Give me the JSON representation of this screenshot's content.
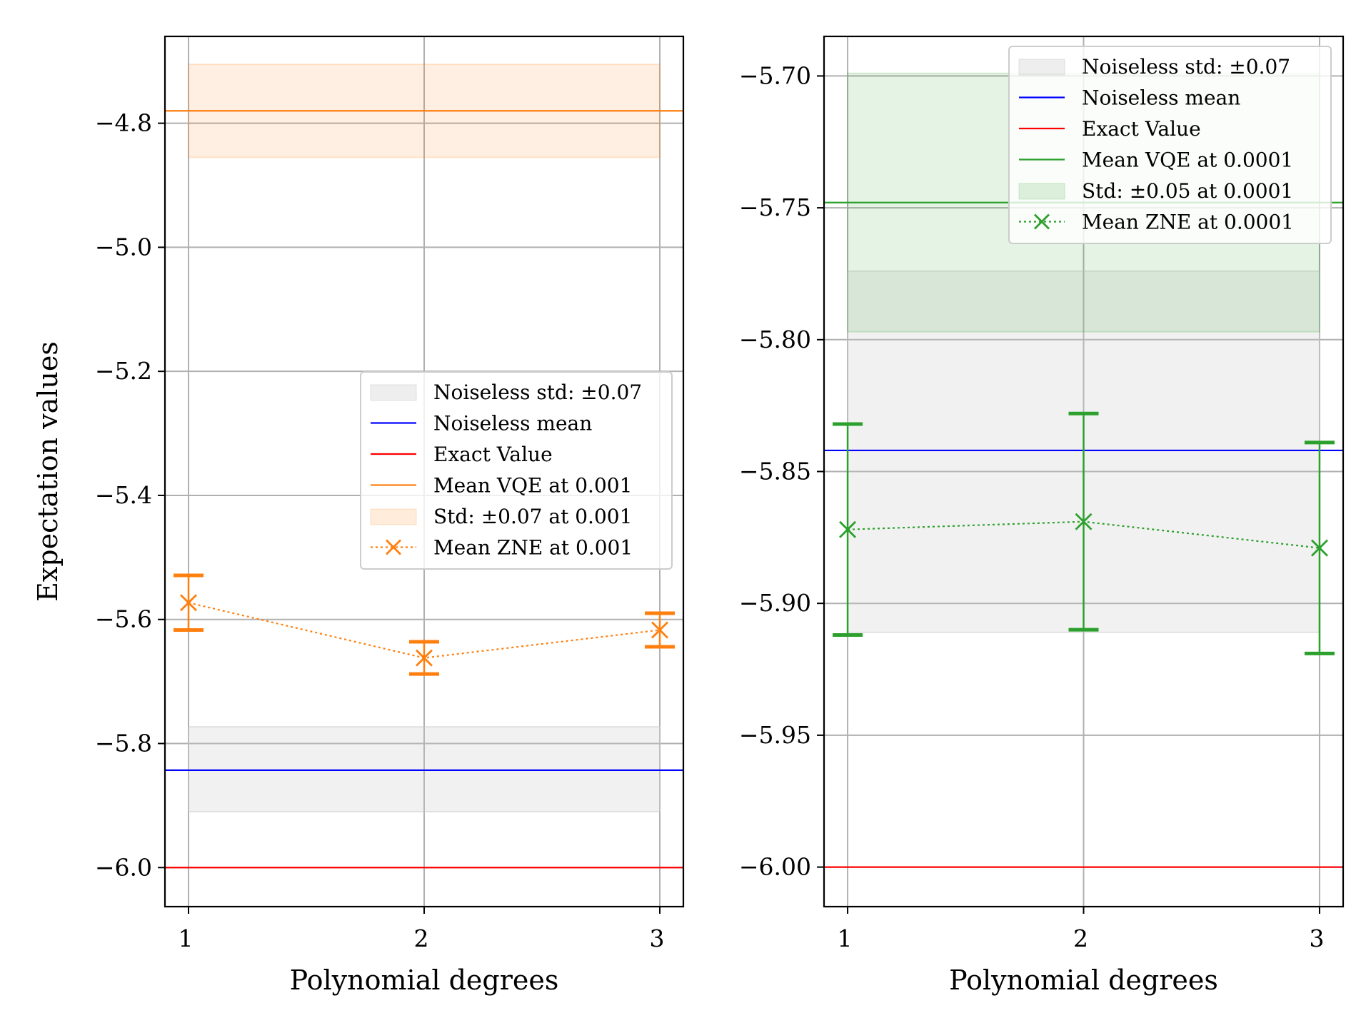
{
  "chart_data": [
    {
      "type": "line",
      "xlabel": "Polynomial degrees",
      "ylabel": "Expectation values",
      "x": [
        1,
        2,
        3
      ],
      "xticks": [
        "1",
        "2",
        "3"
      ],
      "xlim": [
        0.9,
        3.1
      ],
      "ylim": [
        -6.063,
        -4.66
      ],
      "yticks": [
        -6.0,
        -5.8,
        -5.6,
        -5.4,
        -5.2,
        -5.0,
        -4.8
      ],
      "ytick_labels": [
        "−6.0",
        "−5.8",
        "−5.6",
        "−5.4",
        "−5.2",
        "−5.0",
        "−4.8"
      ],
      "grid": true,
      "legend_position": "center-right",
      "legend": [
        "Noiseless std: ±0.07",
        "Noiseless mean",
        "Exact Value",
        "Mean VQE at 0.001",
        "Std: ±0.07 at 0.001",
        "Mean ZNE at 0.001"
      ],
      "noiseless_mean": -5.843,
      "noiseless_band": [
        -5.91,
        -5.773
      ],
      "exact_value": -6.0,
      "vqe_mean": -4.78,
      "vqe_band": [
        -4.855,
        -4.705
      ],
      "zne_mean": [
        -5.573,
        -5.662,
        -5.617
      ],
      "zne_err": [
        0.044,
        0.026,
        0.027
      ],
      "accent_color": "#ff7f0e"
    },
    {
      "type": "line",
      "xlabel": "Polynomial degrees",
      "ylabel": "",
      "x": [
        1,
        2,
        3
      ],
      "xticks": [
        "1",
        "2",
        "3"
      ],
      "xlim": [
        0.9,
        3.1
      ],
      "ylim": [
        -6.015,
        -5.685
      ],
      "yticks": [
        -6.0,
        -5.95,
        -5.9,
        -5.85,
        -5.8,
        -5.75,
        -5.7
      ],
      "ytick_labels": [
        "−6.00",
        "−5.95",
        "−5.90",
        "−5.85",
        "−5.80",
        "−5.75",
        "−5.70"
      ],
      "grid": true,
      "legend_position": "top-right",
      "legend": [
        "Noiseless std: ±0.07",
        "Noiseless mean",
        "Exact Value",
        "Mean VQE at 0.0001",
        "Std: ±0.05 at 0.0001",
        "Mean ZNE at 0.0001"
      ],
      "noiseless_mean": -5.842,
      "noiseless_band": [
        -5.911,
        -5.774
      ],
      "exact_value": -6.0,
      "vqe_mean": -5.748,
      "vqe_band": [
        -5.797,
        -5.699
      ],
      "zne_mean": [
        -5.872,
        -5.869,
        -5.879
      ],
      "zne_err": [
        0.04,
        0.041,
        0.04
      ],
      "accent_color": "#2ca02c"
    }
  ]
}
